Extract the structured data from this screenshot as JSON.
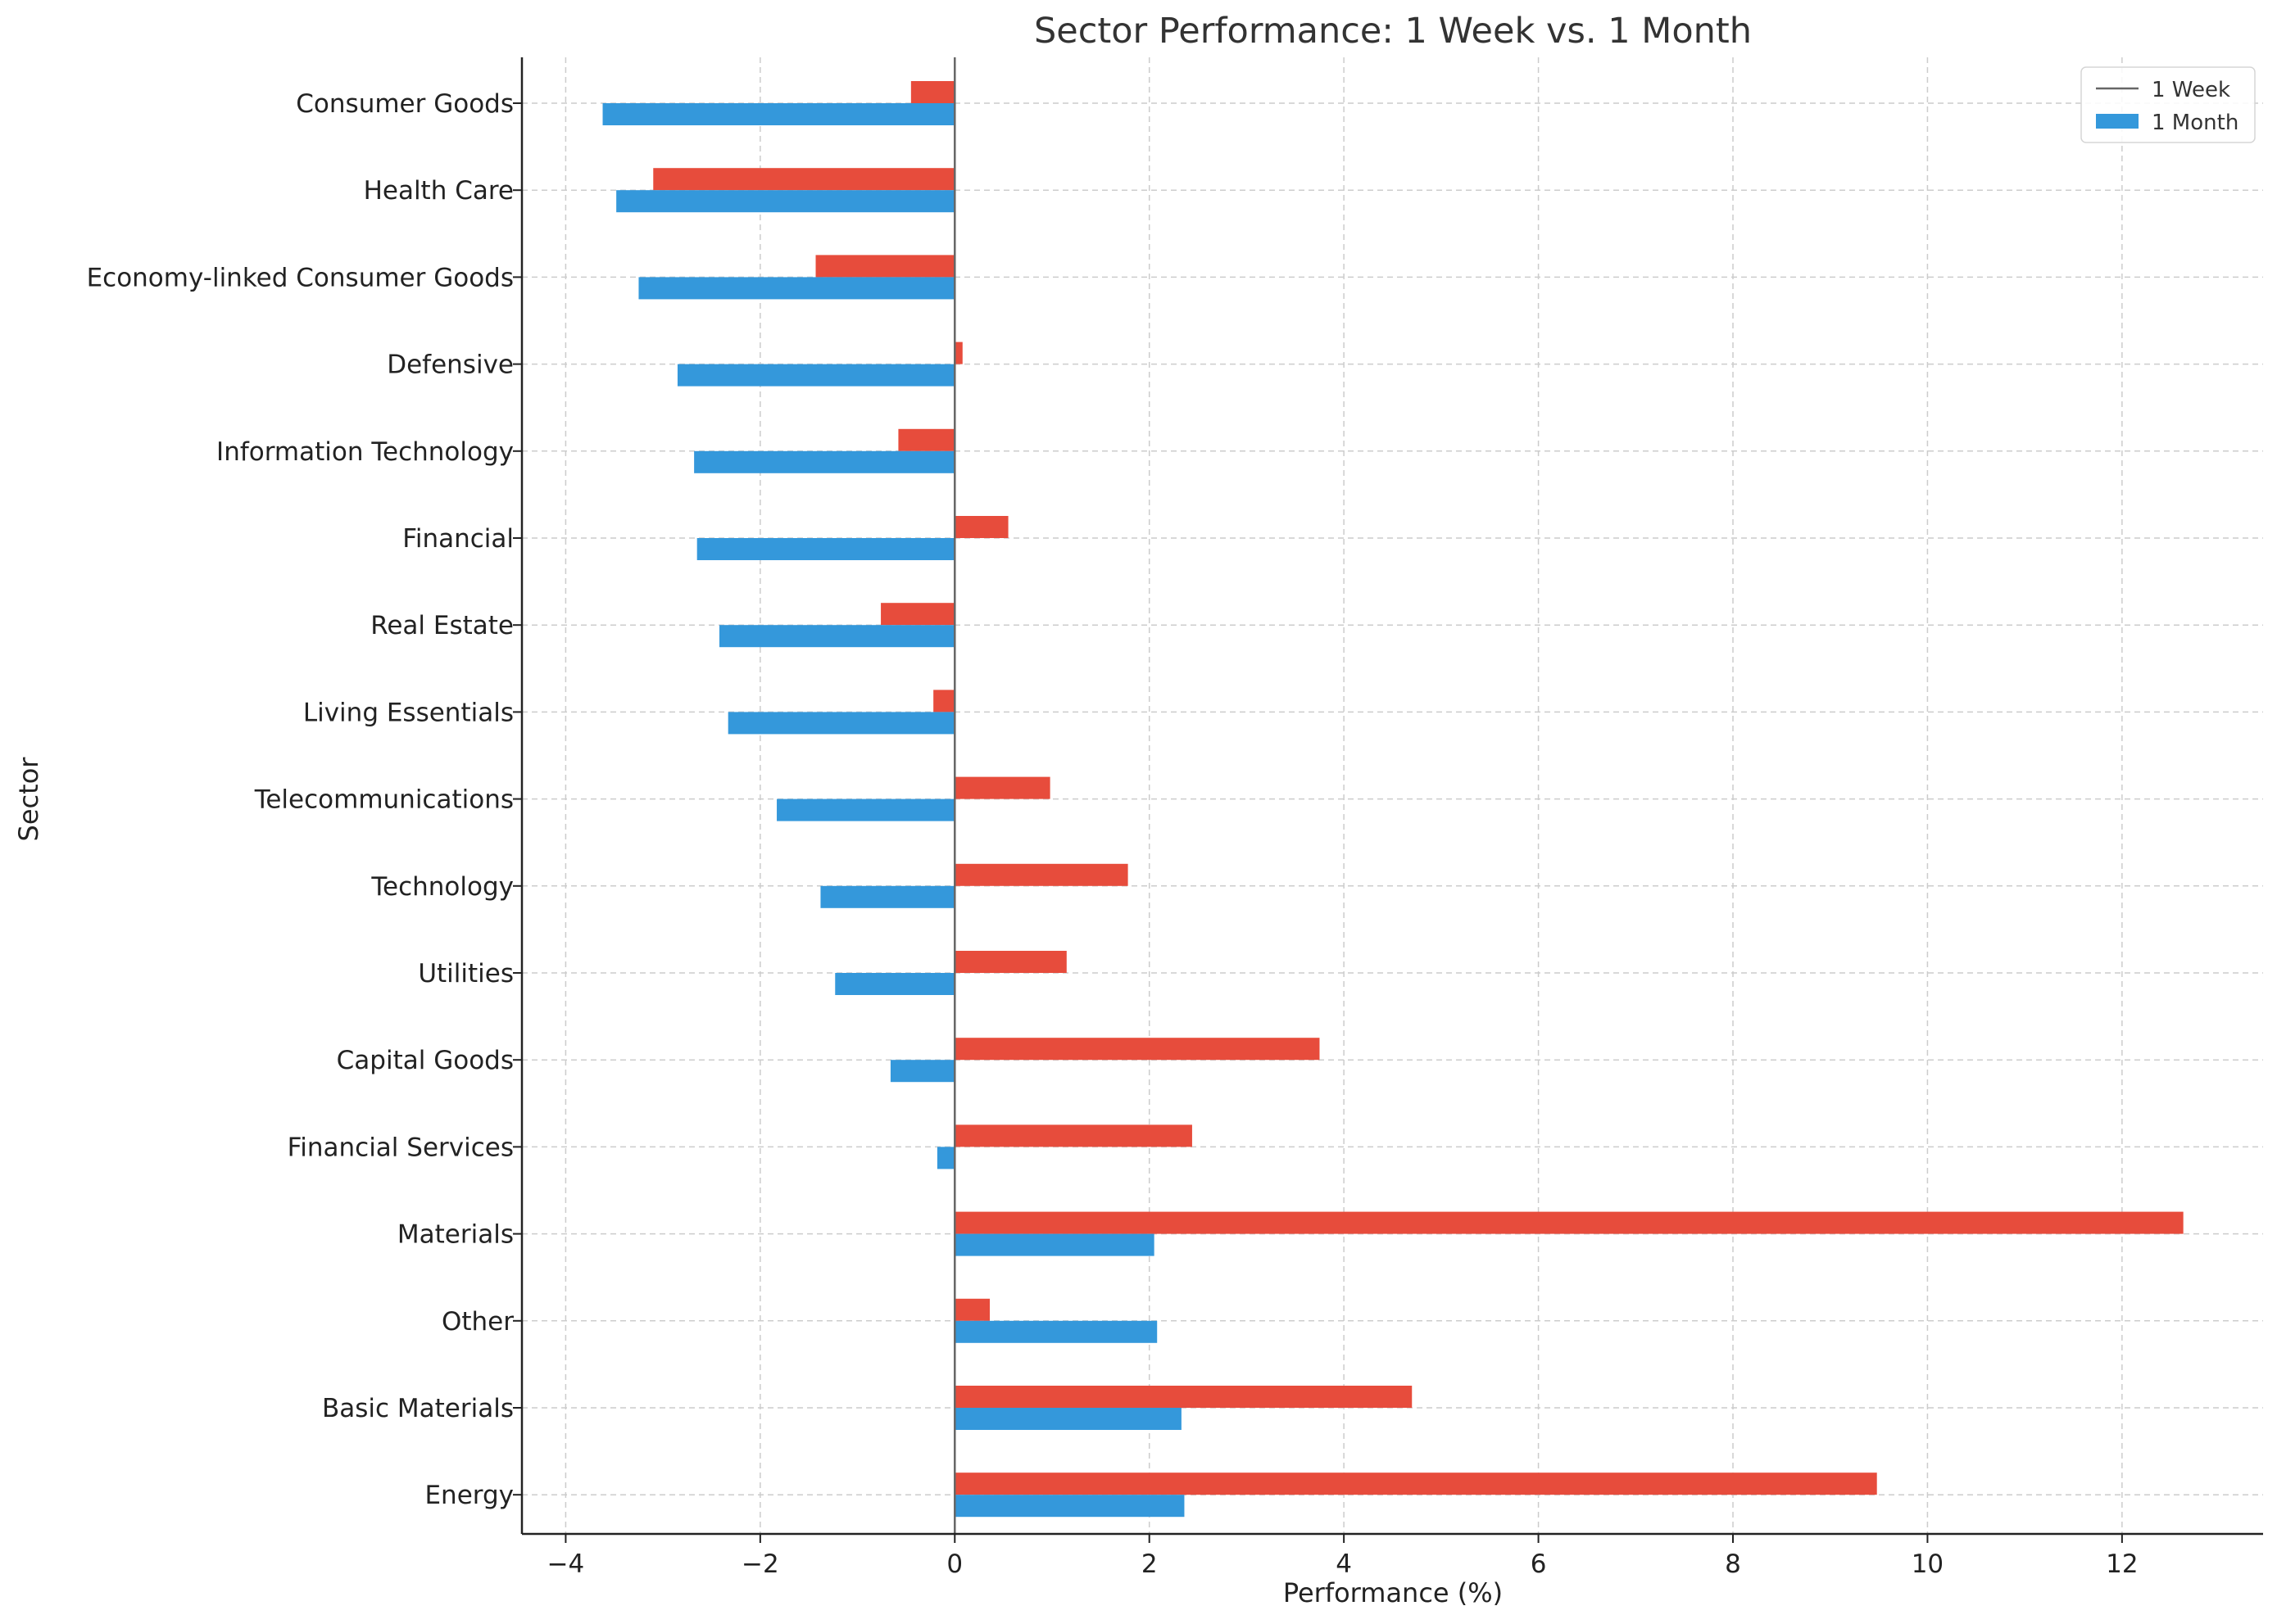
{
  "chart_data": {
    "type": "bar",
    "orientation": "horizontal",
    "title": "Sector Performance: 1 Week vs. 1 Month",
    "xlabel": "Performance (%)",
    "ylabel": "Sector",
    "categories": [
      "Consumer Goods",
      "Health Care",
      "Economy-linked Consumer Goods",
      "Defensive",
      "Information Technology",
      "Financial",
      "Real Estate",
      "Living Essentials",
      "Telecommunications",
      "Technology",
      "Utilities",
      "Capital Goods",
      "Financial Services",
      "Materials",
      "Other",
      "Basic Materials",
      "Energy"
    ],
    "series": [
      {
        "name": "1 Week",
        "color": "#e74c3c",
        "values": [
          -0.45,
          -3.1,
          -1.43,
          0.08,
          -0.58,
          0.55,
          -0.76,
          -0.22,
          0.98,
          1.78,
          1.15,
          3.75,
          2.44,
          12.63,
          0.36,
          4.7,
          9.48
        ]
      },
      {
        "name": "1 Month",
        "color": "#3498db",
        "values": [
          -3.62,
          -3.48,
          -3.25,
          -2.85,
          -2.68,
          -2.65,
          -2.42,
          -2.33,
          -1.83,
          -1.38,
          -1.23,
          -0.66,
          -0.18,
          2.05,
          2.08,
          2.33,
          2.36
        ]
      }
    ],
    "xlim": [
      -4.45,
      13.45
    ],
    "xticks": [
      -4,
      -2,
      0,
      2,
      4,
      6,
      8,
      10,
      12
    ],
    "xtick_labels": [
      "−4",
      "−2",
      "0",
      "2",
      "4",
      "6",
      "8",
      "10",
      "12"
    ],
    "grid": true,
    "legend": {
      "position": "top-right",
      "entries": [
        "1 Week",
        "1 Month"
      ]
    },
    "zero_line_color": "#666666"
  }
}
